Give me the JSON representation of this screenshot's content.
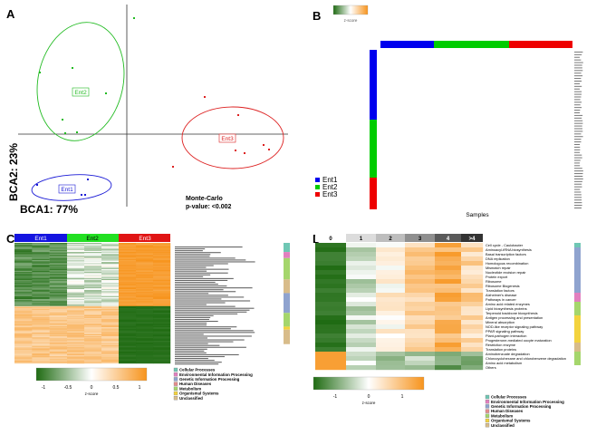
{
  "panels": {
    "a": {
      "letter": "A",
      "axis_x_label": "BCA1: 77%",
      "axis_y_label": "BCA2: 23%",
      "stat_line1": "Monte-Carlo",
      "stat_line2": "p-value: <0.002",
      "groups": [
        "Ent1",
        "Ent2",
        "Ent3"
      ],
      "group_colors": [
        "#1a1ad6",
        "#22bb22",
        "#dd2222"
      ]
    },
    "b": {
      "letter": "B",
      "key_label": "z-score",
      "x_label": "Samples",
      "legend": [
        "Ent1",
        "Ent2",
        "Ent3"
      ],
      "legend_colors": [
        "#0000ee",
        "#00cc00",
        "#ee0000"
      ]
    },
    "c": {
      "letter": "C",
      "headers": [
        "Ent1",
        "Ent2",
        "Ent3"
      ],
      "header_colors": [
        "#1414e0",
        "#22e022",
        "#e01414"
      ],
      "key_ticks": [
        "-1",
        "-0.5",
        "0",
        "0.5",
        "1"
      ],
      "key_label": "z-score"
    },
    "d": {
      "letter": "D",
      "headers": [
        "0",
        "1",
        "2",
        "3",
        "4",
        ">4"
      ],
      "pathways": [
        "Cell cycle - Caulobacter",
        "Aminoacyl-tRNA biosynthesis",
        "Basal transcription factors",
        "DNA replication",
        "Homologous recombination",
        "Mismatch repair",
        "Nucleotide excision repair",
        "Protein export",
        "Ribosome",
        "Ribosome Biogenesis",
        "Translation factors",
        "Alzheimer's disease",
        "Pathways in cancer",
        "Amino acid related enzymes",
        "Lipid biosynthesis proteins",
        "Terpenoid backbone biosynthesis",
        "Antigen processing and presentation",
        "Mineral absorption",
        "NOD-like receptor signaling pathway",
        "PPAR signaling pathway",
        "Plant-pathogen interaction",
        "Progesterone-mediated oocyte maturation",
        "Restriction enzyme",
        "Translation proteins",
        "Aminobenzoate degradation",
        "Chlorocyclohexane and chlorobenzene degradation",
        "Amino acid metabolism",
        "Others"
      ],
      "key_ticks": [
        "-1",
        "0",
        "1"
      ],
      "key_label": "z-score"
    }
  },
  "category_legend": [
    {
      "label": "Cellular Processes",
      "color": "#6fc7b4"
    },
    {
      "label": "Environmental Information Processing",
      "color": "#e27fbf"
    },
    {
      "label": "Genetic Information Processing",
      "color": "#8fa3cf"
    },
    {
      "label": "Human Diseases",
      "color": "#e48c8c"
    },
    {
      "label": "Metabolism",
      "color": "#a5d66c"
    },
    {
      "label": "Organismal Systems",
      "color": "#f3d33e"
    },
    {
      "label": "Unclassified",
      "color": "#d8bc8a"
    }
  ],
  "scale_colors": {
    "low": "#1f6b12",
    "mid": "#ffffff",
    "high": "#f7941d"
  }
}
